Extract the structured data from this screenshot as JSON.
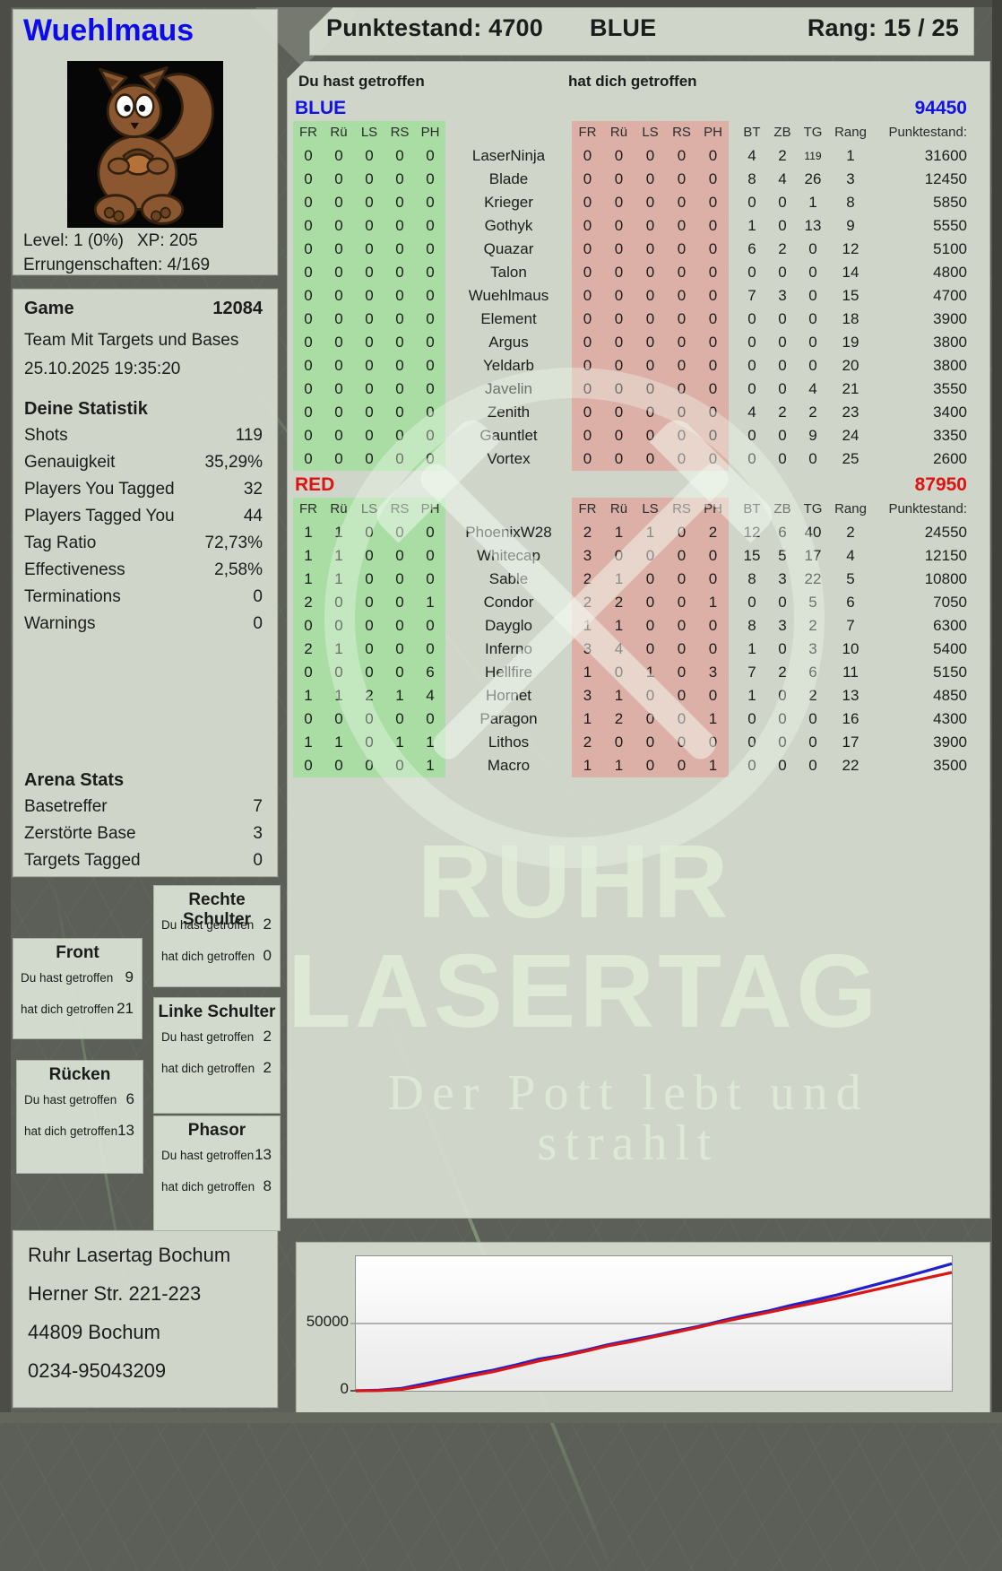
{
  "player": {
    "name": "Wuehlmaus",
    "level_label": "Level: 1 (0%)",
    "xp_label": "XP: 205",
    "achievements_label": "Errungenschaften: 4/169",
    "avatar": "squirrel-avatar"
  },
  "header": {
    "punktestand_label": "Punktestand: 4700",
    "team": "BLUE",
    "rang_label": "Rang: 15 / 25"
  },
  "game": {
    "title": "Game",
    "number": "12084",
    "mode": "Team Mit Targets und Bases",
    "datetime": "25.10.2025 19:35:20"
  },
  "stats": {
    "title": "Deine Statistik",
    "rows": [
      {
        "label": "Shots",
        "value": "119"
      },
      {
        "label": "Genauigkeit",
        "value": "35,29%"
      },
      {
        "label": "Players You Tagged",
        "value": "32"
      },
      {
        "label": "Players Tagged You",
        "value": "44"
      },
      {
        "label": "Tag Ratio",
        "value": "72,73%"
      },
      {
        "label": "Effectiveness",
        "value": "2,58%"
      },
      {
        "label": "Terminations",
        "value": "0"
      },
      {
        "label": "Warnings",
        "value": "0"
      }
    ]
  },
  "arena": {
    "title": "Arena Stats",
    "rows": [
      {
        "label": "Basetreffer",
        "value": "7"
      },
      {
        "label": "Zerstörte Base",
        "value": "3"
      },
      {
        "label": "Targets Tagged",
        "value": "0"
      }
    ]
  },
  "bodypart_labels": {
    "hit": "Du hast getroffen",
    "got": "hat dich getroffen"
  },
  "bodyparts": [
    {
      "title": "Front",
      "hit": "9",
      "got": "21"
    },
    {
      "title": "Rücken",
      "hit": "6",
      "got": "13"
    },
    {
      "title": "Rechte Schulter",
      "hit": "2",
      "got": "0"
    },
    {
      "title": "Linke Schulter",
      "hit": "2",
      "got": "2"
    },
    {
      "title": "Phasor",
      "hit": "13",
      "got": "8"
    }
  ],
  "scoreboard": {
    "left_header": "Du hast getroffen",
    "right_header": "hat dich getroffen",
    "hit_cols": [
      "FR",
      "Rü",
      "LS",
      "RS",
      "PH"
    ],
    "stat_cols": [
      "BT",
      "ZB",
      "TG",
      "Rang",
      "Punktestand:"
    ],
    "teams": [
      {
        "name": "BLUE",
        "total": "94450",
        "color": "#1212e8",
        "rows": [
          {
            "player": "LaserNinja",
            "you": [
              0,
              0,
              0,
              0,
              0
            ],
            "them": [
              0,
              0,
              0,
              0,
              0
            ],
            "bt": 4,
            "zb": 2,
            "tg": 119,
            "rang": 1,
            "score": 31600
          },
          {
            "player": "Blade",
            "you": [
              0,
              0,
              0,
              0,
              0
            ],
            "them": [
              0,
              0,
              0,
              0,
              0
            ],
            "bt": 8,
            "zb": 4,
            "tg": 26,
            "rang": 3,
            "score": 12450
          },
          {
            "player": "Krieger",
            "you": [
              0,
              0,
              0,
              0,
              0
            ],
            "them": [
              0,
              0,
              0,
              0,
              0
            ],
            "bt": 0,
            "zb": 0,
            "tg": 1,
            "rang": 8,
            "score": 5850
          },
          {
            "player": "Gothyk",
            "you": [
              0,
              0,
              0,
              0,
              0
            ],
            "them": [
              0,
              0,
              0,
              0,
              0
            ],
            "bt": 1,
            "zb": 0,
            "tg": 13,
            "rang": 9,
            "score": 5550
          },
          {
            "player": "Quazar",
            "you": [
              0,
              0,
              0,
              0,
              0
            ],
            "them": [
              0,
              0,
              0,
              0,
              0
            ],
            "bt": 6,
            "zb": 2,
            "tg": 0,
            "rang": 12,
            "score": 5100
          },
          {
            "player": "Talon",
            "you": [
              0,
              0,
              0,
              0,
              0
            ],
            "them": [
              0,
              0,
              0,
              0,
              0
            ],
            "bt": 0,
            "zb": 0,
            "tg": 0,
            "rang": 14,
            "score": 4800
          },
          {
            "player": "Wuehlmaus",
            "you": [
              0,
              0,
              0,
              0,
              0
            ],
            "them": [
              0,
              0,
              0,
              0,
              0
            ],
            "bt": 7,
            "zb": 3,
            "tg": 0,
            "rang": 15,
            "score": 4700
          },
          {
            "player": "Element",
            "you": [
              0,
              0,
              0,
              0,
              0
            ],
            "them": [
              0,
              0,
              0,
              0,
              0
            ],
            "bt": 0,
            "zb": 0,
            "tg": 0,
            "rang": 18,
            "score": 3900
          },
          {
            "player": "Argus",
            "you": [
              0,
              0,
              0,
              0,
              0
            ],
            "them": [
              0,
              0,
              0,
              0,
              0
            ],
            "bt": 0,
            "zb": 0,
            "tg": 0,
            "rang": 19,
            "score": 3800
          },
          {
            "player": "Yeldarb",
            "you": [
              0,
              0,
              0,
              0,
              0
            ],
            "them": [
              0,
              0,
              0,
              0,
              0
            ],
            "bt": 0,
            "zb": 0,
            "tg": 0,
            "rang": 20,
            "score": 3800
          },
          {
            "player": "Javelin",
            "you": [
              0,
              0,
              0,
              0,
              0
            ],
            "them": [
              0,
              0,
              0,
              0,
              0
            ],
            "bt": 0,
            "zb": 0,
            "tg": 4,
            "rang": 21,
            "score": 3550
          },
          {
            "player": "Zenith",
            "you": [
              0,
              0,
              0,
              0,
              0
            ],
            "them": [
              0,
              0,
              0,
              0,
              0
            ],
            "bt": 4,
            "zb": 2,
            "tg": 2,
            "rang": 23,
            "score": 3400
          },
          {
            "player": "Gauntlet",
            "you": [
              0,
              0,
              0,
              0,
              0
            ],
            "them": [
              0,
              0,
              0,
              0,
              0
            ],
            "bt": 0,
            "zb": 0,
            "tg": 9,
            "rang": 24,
            "score": 3350
          },
          {
            "player": "Vortex",
            "you": [
              0,
              0,
              0,
              0,
              0
            ],
            "them": [
              0,
              0,
              0,
              0,
              0
            ],
            "bt": 0,
            "zb": 0,
            "tg": 0,
            "rang": 25,
            "score": 2600
          }
        ]
      },
      {
        "name": "RED",
        "total": "87950",
        "color": "#e01212",
        "rows": [
          {
            "player": "PhoenixW28",
            "you": [
              1,
              1,
              0,
              0,
              0
            ],
            "them": [
              2,
              1,
              1,
              0,
              2
            ],
            "bt": 12,
            "zb": 6,
            "tg": 40,
            "rang": 2,
            "score": 24550
          },
          {
            "player": "Whitecap",
            "you": [
              1,
              1,
              0,
              0,
              0
            ],
            "them": [
              3,
              0,
              0,
              0,
              0
            ],
            "bt": 15,
            "zb": 5,
            "tg": 17,
            "rang": 4,
            "score": 12150
          },
          {
            "player": "Sable",
            "you": [
              1,
              1,
              0,
              0,
              0
            ],
            "them": [
              2,
              1,
              0,
              0,
              0
            ],
            "bt": 8,
            "zb": 3,
            "tg": 22,
            "rang": 5,
            "score": 10800
          },
          {
            "player": "Condor",
            "you": [
              2,
              0,
              0,
              0,
              1
            ],
            "them": [
              2,
              2,
              0,
              0,
              1
            ],
            "bt": 0,
            "zb": 0,
            "tg": 5,
            "rang": 6,
            "score": 7050
          },
          {
            "player": "Dayglo",
            "you": [
              0,
              0,
              0,
              0,
              0
            ],
            "them": [
              1,
              1,
              0,
              0,
              0
            ],
            "bt": 8,
            "zb": 3,
            "tg": 2,
            "rang": 7,
            "score": 6300
          },
          {
            "player": "Inferno",
            "you": [
              2,
              1,
              0,
              0,
              0
            ],
            "them": [
              3,
              4,
              0,
              0,
              0
            ],
            "bt": 1,
            "zb": 0,
            "tg": 3,
            "rang": 10,
            "score": 5400
          },
          {
            "player": "Hellfire",
            "you": [
              0,
              0,
              0,
              0,
              6
            ],
            "them": [
              1,
              0,
              1,
              0,
              3
            ],
            "bt": 7,
            "zb": 2,
            "tg": 6,
            "rang": 11,
            "score": 5150
          },
          {
            "player": "Hornet",
            "you": [
              1,
              1,
              2,
              1,
              4
            ],
            "them": [
              3,
              1,
              0,
              0,
              0
            ],
            "bt": 1,
            "zb": 0,
            "tg": 2,
            "rang": 13,
            "score": 4850
          },
          {
            "player": "Paragon",
            "you": [
              0,
              0,
              0,
              0,
              0
            ],
            "them": [
              1,
              2,
              0,
              0,
              1
            ],
            "bt": 0,
            "zb": 0,
            "tg": 0,
            "rang": 16,
            "score": 4300
          },
          {
            "player": "Lithos",
            "you": [
              1,
              1,
              0,
              1,
              1
            ],
            "them": [
              2,
              0,
              0,
              0,
              0
            ],
            "bt": 0,
            "zb": 0,
            "tg": 0,
            "rang": 17,
            "score": 3900
          },
          {
            "player": "Macro",
            "you": [
              0,
              0,
              0,
              0,
              1
            ],
            "them": [
              1,
              1,
              0,
              0,
              1
            ],
            "bt": 0,
            "zb": 0,
            "tg": 0,
            "rang": 22,
            "score": 3500
          }
        ]
      }
    ]
  },
  "watermark": {
    "line1": "RUHR",
    "line2": "LASERTAG",
    "tagline": "Der Pott lebt und strahlt",
    "symbol": "crossed-hammer-and-pick"
  },
  "address": {
    "lines": [
      "Ruhr Lasertag Bochum",
      "Herner Str. 221-223",
      "44809 Bochum",
      "0234-95043209"
    ]
  },
  "chart_data": {
    "type": "line",
    "title": "",
    "xlabel": "",
    "ylabel": "",
    "ylim": [
      0,
      100000
    ],
    "yticks": [
      0,
      50000
    ],
    "grid": "horizontal",
    "legend": "none",
    "x_note": "evenly spaced over game duration",
    "series": [
      {
        "name": "BLUE",
        "color": "#2020cc",
        "values": [
          0,
          400,
          1800,
          5200,
          8800,
          12300,
          15400,
          19300,
          23600,
          26400,
          30100,
          34200,
          37600,
          40900,
          44600,
          48100,
          52200,
          56100,
          59400,
          63600,
          67400,
          71300,
          75900,
          80400,
          84900,
          89600,
          94450
        ]
      },
      {
        "name": "RED",
        "color": "#dd1414",
        "values": [
          0,
          150,
          1000,
          3800,
          7300,
          10900,
          14200,
          18100,
          22200,
          25600,
          29300,
          33400,
          36500,
          40100,
          43700,
          47400,
          51300,
          54800,
          58300,
          61900,
          65300,
          68800,
          72600,
          76500,
          80400,
          84200,
          87950
        ]
      }
    ]
  }
}
